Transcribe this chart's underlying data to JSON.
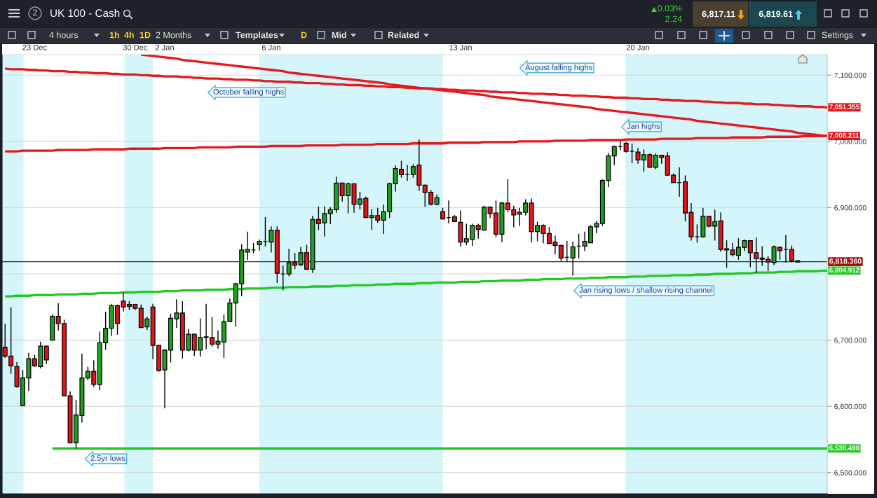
{
  "chart_data": {
    "type": "candlestick",
    "title": "UK 100 - Cash",
    "categories": [
      null,
      null,
      null,
      null,
      null,
      "23 Dec",
      null,
      null,
      null,
      null,
      null,
      null,
      null,
      null,
      null,
      null,
      null,
      null,
      null,
      null,
      null,
      null,
      "30 Dec",
      null,
      null,
      null,
      null,
      "2 Jan",
      null,
      null,
      null,
      null,
      null,
      null,
      null,
      null,
      null,
      null,
      null,
      null,
      null,
      null,
      null,
      null,
      null,
      "6 Jan",
      null,
      null,
      null,
      null,
      null,
      null,
      null,
      null,
      null,
      null,
      null,
      null,
      null,
      null,
      null,
      null,
      null,
      null,
      null,
      null,
      null,
      null,
      null,
      null,
      null,
      null,
      null,
      null,
      null,
      null,
      null,
      "13 Jan",
      null,
      null,
      null,
      null,
      null,
      null,
      null,
      null,
      null,
      null,
      null,
      null,
      null,
      null,
      null,
      null,
      null,
      null,
      null,
      null,
      null,
      null,
      null,
      null,
      null,
      null,
      null,
      null,
      null,
      "20 Jan",
      null,
      null,
      null,
      null,
      null,
      null,
      null,
      null,
      null,
      null,
      null,
      null,
      null,
      null,
      null,
      null,
      null,
      null,
      null,
      null,
      null,
      null,
      null,
      null,
      null,
      null,
      null,
      null,
      null,
      null,
      null,
      null
    ],
    "ohlc": [
      [
        6689,
        6724,
        6674,
        6676
      ],
      [
        6676,
        6749,
        6650,
        6661
      ],
      [
        6660,
        6666,
        6629,
        6630
      ],
      [
        6601,
        6654,
        6601,
        6643
      ],
      [
        6643,
        6680,
        6624,
        6672
      ],
      [
        6672,
        6677,
        6660,
        6661
      ],
      [
        6660,
        6697,
        6658,
        6691
      ],
      [
        6691,
        6691,
        6665,
        6670
      ],
      [
        6700,
        6738,
        6700,
        6736
      ],
      [
        6736,
        6755,
        6715,
        6725
      ],
      [
        6725,
        6730,
        6616,
        6616
      ],
      [
        6616,
        6622,
        6545,
        6545
      ],
      [
        6545,
        6609,
        6537,
        6587
      ],
      [
        6586,
        6679,
        6576,
        6643
      ],
      [
        6643,
        6659,
        6640,
        6653
      ],
      [
        6653,
        6669,
        6630,
        6633
      ],
      [
        6633,
        6712,
        6625,
        6696
      ],
      [
        6696,
        6742,
        6686,
        6718
      ],
      [
        6718,
        6754,
        6707,
        6752
      ],
      [
        6752,
        6753,
        6709,
        6725
      ],
      [
        6759,
        6771,
        6744,
        6750
      ],
      [
        6751,
        6758,
        6746,
        6754
      ],
      [
        6754,
        6754,
        6746,
        6748
      ],
      [
        6748,
        6753,
        6719,
        6719
      ],
      [
        6720,
        6735,
        6716,
        6732
      ],
      [
        6750,
        6754,
        6672,
        6692
      ],
      [
        6692,
        6692,
        6653,
        6654
      ],
      [
        6655,
        6686,
        6598,
        6685
      ],
      [
        6685,
        6739,
        6667,
        6733
      ],
      [
        6732,
        6761,
        6719,
        6741
      ],
      [
        6741,
        6758,
        6673,
        6685
      ],
      [
        6685,
        6716,
        6684,
        6709
      ],
      [
        6709,
        6709,
        6677,
        6685
      ],
      [
        6685,
        6732,
        6676,
        6704
      ],
      [
        6704,
        6754,
        6687,
        6705
      ],
      [
        6704,
        6734,
        6691,
        6694
      ],
      [
        6694,
        6714,
        6688,
        6698
      ],
      [
        6697,
        6738,
        6674,
        6728
      ],
      [
        6728,
        6762,
        6728,
        6756
      ],
      [
        6756,
        6786,
        6721,
        6785
      ],
      [
        6785,
        6844,
        6767,
        6836
      ],
      [
        6833,
        6863,
        6822,
        6837
      ],
      [
        6836,
        6846,
        6832,
        6836
      ],
      [
        6844,
        6851,
        6836,
        6849
      ],
      [
        6849,
        6885,
        6842,
        6849
      ],
      [
        6848,
        6871,
        6833,
        6866
      ],
      [
        6866,
        6871,
        6787,
        6801
      ],
      [
        6800,
        6812,
        6776,
        6800
      ],
      [
        6800,
        6837,
        6797,
        6817
      ],
      [
        6817,
        6831,
        6808,
        6813
      ],
      [
        6814,
        6840,
        6812,
        6832
      ],
      [
        6832,
        6843,
        6807,
        6807
      ],
      [
        6807,
        6887,
        6802,
        6882
      ],
      [
        6882,
        6901,
        6867,
        6876
      ],
      [
        6877,
        6901,
        6857,
        6891
      ],
      [
        6891,
        6900,
        6876,
        6897
      ],
      [
        6897,
        6946,
        6893,
        6937
      ],
      [
        6937,
        6937,
        6910,
        6918
      ],
      [
        6918,
        6937,
        6892,
        6936
      ],
      [
        6936,
        6936,
        6893,
        6905
      ],
      [
        6905,
        6923,
        6898,
        6913
      ],
      [
        6914,
        6916,
        6885,
        6885
      ],
      [
        6885,
        6897,
        6867,
        6888
      ],
      [
        6888,
        6899,
        6878,
        6881
      ],
      [
        6881,
        6904,
        6861,
        6894
      ],
      [
        6894,
        6937,
        6885,
        6936
      ],
      [
        6936,
        6963,
        6925,
        6959
      ],
      [
        6958,
        6970,
        6946,
        6950
      ],
      [
        6950,
        6964,
        6941,
        6950
      ],
      [
        6950,
        6965,
        6946,
        6962
      ],
      [
        6964,
        7002,
        6926,
        6934
      ],
      [
        6934,
        6934,
        6902,
        6923
      ],
      [
        6923,
        6926,
        6904,
        6905
      ],
      [
        6905,
        6919,
        6904,
        6915
      ],
      [
        6894,
        6899,
        6883,
        6883
      ],
      [
        6885,
        6910,
        6877,
        6885
      ],
      [
        6886,
        6888,
        6879,
        6879
      ],
      [
        6878,
        6895,
        6842,
        6848
      ],
      [
        6848,
        6875,
        6844,
        6853
      ],
      [
        6852,
        6875,
        6843,
        6873
      ],
      [
        6873,
        6875,
        6854,
        6867
      ],
      [
        6866,
        6902,
        6866,
        6901
      ],
      [
        6901,
        6901,
        6885,
        6891
      ],
      [
        6892,
        6910,
        6856,
        6860
      ],
      [
        6860,
        6908,
        6849,
        6907
      ],
      [
        6907,
        6942,
        6894,
        6897
      ],
      [
        6897,
        6902,
        6871,
        6889
      ],
      [
        6890,
        6899,
        6873,
        6893
      ],
      [
        6893,
        6912,
        6889,
        6907
      ],
      [
        6907,
        6913,
        6848,
        6864
      ],
      [
        6864,
        6878,
        6850,
        6873
      ],
      [
        6873,
        6874,
        6847,
        6861
      ],
      [
        6861,
        6870,
        6846,
        6846
      ],
      [
        6848,
        6857,
        6830,
        6843
      ],
      [
        6843,
        6843,
        6820,
        6824
      ],
      [
        6825,
        6849,
        6819,
        6825
      ],
      [
        6824,
        6848,
        6798,
        6841
      ],
      [
        6842,
        6860,
        6824,
        6842
      ],
      [
        6842,
        6863,
        6835,
        6849
      ],
      [
        6847,
        6873,
        6847,
        6871
      ],
      [
        6871,
        6879,
        6862,
        6876
      ],
      [
        6876,
        6942,
        6873,
        6941
      ],
      [
        6941,
        6982,
        6932,
        6978
      ],
      [
        6978,
        6993,
        6965,
        6992
      ],
      [
        6992,
        6999,
        6988,
        6992
      ],
      [
        6997,
        6999,
        6984,
        6985
      ],
      [
        6985,
        6996,
        6968,
        6985
      ],
      [
        6984,
        6989,
        6967,
        6972
      ],
      [
        6972,
        6987,
        6955,
        6980
      ],
      [
        6980,
        6981,
        6961,
        6961
      ],
      [
        6961,
        6981,
        6959,
        6979
      ],
      [
        6979,
        6979,
        6967,
        6976
      ],
      [
        6978,
        6983,
        6949,
        6949
      ],
      [
        6949,
        6951,
        6938,
        6938
      ],
      [
        6938,
        6960,
        6917,
        6938
      ],
      [
        6939,
        6948,
        6880,
        6892
      ],
      [
        6893,
        6906,
        6851,
        6856
      ],
      [
        6856,
        6874,
        6848,
        6856
      ],
      [
        6856,
        6899,
        6856,
        6887
      ],
      [
        6887,
        6887,
        6871,
        6872
      ],
      [
        6872,
        6896,
        6851,
        6879
      ],
      [
        6880,
        6892,
        6834,
        6837
      ],
      [
        6838,
        6850,
        6810,
        6836
      ],
      [
        6836,
        6846,
        6827,
        6829
      ],
      [
        6828,
        6853,
        6822,
        6840
      ],
      [
        6840,
        6851,
        6835,
        6850
      ],
      [
        6850,
        6850,
        6811,
        6832
      ],
      [
        6832,
        6854,
        6802,
        6823
      ],
      [
        6824,
        6841,
        6813,
        6822
      ],
      [
        6822,
        6826,
        6805,
        6818
      ],
      [
        6817,
        6842,
        6814,
        6841
      ],
      [
        6840,
        6841,
        6822,
        6835
      ],
      [
        6837,
        6858,
        6818,
        6837
      ],
      [
        6837,
        6842,
        6818,
        6820
      ],
      [
        6820,
        6820,
        6818,
        6818
      ],
      null,
      null,
      null,
      null,
      null
    ],
    "colors": [
      "#e3151b",
      "#e3151b",
      "#e3151b",
      "#20a020",
      "#20a020",
      "#e3151b",
      "#20a020",
      "#e3151b",
      "#20a020",
      "#e3151b",
      "#e3151b",
      "#e3151b",
      "#20a020",
      "#20a020",
      "#20a020",
      "#e3151b",
      "#20a020",
      "#20a020",
      "#20a020",
      "#e3151b",
      "#e3151b",
      "#20a020",
      "#e3151b",
      "#e3151b",
      "#20a020",
      "#e3151b",
      "#e3151b",
      "#20a020",
      "#20a020",
      "#20a020",
      "#e3151b",
      "#20a020",
      "#e3151b",
      "#20a020",
      "#20a020",
      "#e3151b",
      "#20a020",
      "#20a020",
      "#20a020",
      "#20a020",
      "#20a020",
      "#20a020",
      "#000000",
      "#20a020",
      "#000000",
      "#20a020",
      "#e3151b",
      "#000000",
      "#20a020",
      "#e3151b",
      "#20a020",
      "#e3151b",
      "#20a020",
      "#e3151b",
      "#20a020",
      "#20a020",
      "#20a020",
      "#e3151b",
      "#20a020",
      "#e3151b",
      "#20a020",
      "#e3151b",
      "#20a020",
      "#e3151b",
      "#20a020",
      "#20a020",
      "#20a020",
      "#e3151b",
      "#000000",
      "#20a020",
      "#e3151b",
      "#e3151b",
      "#e3151b",
      "#20a020",
      "#e3151b",
      "#000000",
      "#e3151b",
      "#e3151b",
      "#20a020",
      "#20a020",
      "#e3151b",
      "#20a020",
      "#e3151b",
      "#e3151b",
      "#20a020",
      "#e3151b",
      "#e3151b",
      "#20a020",
      "#20a020",
      "#e3151b",
      "#20a020",
      "#e3151b",
      "#e3151b",
      "#e3151b",
      "#e3151b",
      "#000000",
      "#20a020",
      "#000000",
      "#20a020",
      "#20a020",
      "#20a020",
      "#20a020",
      "#20a020",
      "#20a020",
      "#000000",
      "#e3151b",
      "#000000",
      "#e3151b",
      "#20a020",
      "#e3151b",
      "#20a020",
      "#e3151b",
      "#e3151b",
      "#e3151b",
      "#000000",
      "#e3151b",
      "#e3151b",
      "#000000",
      "#20a020",
      "#e3151b",
      "#20a020",
      "#e3151b",
      "#e3151b",
      "#e3151b",
      "#20a020",
      "#20a020",
      "#e3151b",
      "#e3151b",
      "#e3151b",
      "#e3151b",
      "#20a020",
      "#e3151b",
      "#000000",
      "#e3151b",
      "#e3151b",
      null,
      null,
      null,
      null,
      null
    ],
    "series": [
      {
        "type": "line",
        "color": "#e5191e",
        "values": [
          7110,
          7109,
          7109,
          7109,
          7108,
          7108,
          7107,
          7107,
          7106,
          7106,
          7106,
          7105,
          7105,
          7104,
          7104,
          7103,
          7103,
          7103,
          7102,
          7102,
          7101,
          7101,
          7101,
          7100,
          7100,
          7099,
          7099,
          7098,
          7098,
          7098,
          7097,
          7097,
          7096,
          7096,
          7095,
          7095,
          7095,
          7094,
          7094,
          7093,
          7093,
          7093,
          7092,
          7092,
          7091,
          7091,
          7090,
          7090,
          7090,
          7089,
          7089,
          7088,
          7088,
          7088,
          7087,
          7087,
          7086,
          7086,
          7085,
          7085,
          7085,
          7084,
          7084,
          7083,
          7083,
          7082,
          7082,
          7082,
          7081,
          7081,
          7080,
          7080,
          7080,
          7079,
          7079,
          7078,
          7078,
          7077,
          7077,
          7077,
          7076,
          7076,
          7075,
          7075,
          7074,
          7074,
          7074,
          7073,
          7073,
          7072,
          7072,
          7072,
          7071,
          7071,
          7070,
          7070,
          7069,
          7069,
          7069,
          7068,
          7068,
          7067,
          7067,
          7066,
          7066,
          7066,
          7065,
          7065,
          7064,
          7064,
          7064,
          7063,
          7063,
          7062,
          7062,
          7061,
          7061,
          7061,
          7060,
          7060,
          7059,
          7059,
          7058,
          7058,
          7058,
          7057,
          7057,
          7056,
          7056,
          7056,
          7055,
          7055,
          7054,
          7054,
          7053,
          7053,
          7053,
          7052,
          7052,
          7051.355
        ],
        "value_labels": [
          null,
          null,
          null,
          null,
          null,
          null,
          null,
          null,
          null,
          null,
          null,
          null,
          null,
          null,
          null,
          null,
          null,
          null,
          null,
          null,
          null,
          null,
          null,
          null,
          null,
          null,
          null,
          null,
          null,
          null,
          null,
          null,
          null,
          null,
          null,
          null,
          null,
          null,
          null,
          null,
          null,
          null,
          null,
          null,
          null,
          null,
          null,
          null,
          null,
          null,
          null,
          null,
          null,
          null,
          null,
          null,
          null,
          null,
          null,
          null,
          null,
          null,
          null,
          null,
          null,
          null,
          null,
          null,
          null,
          null,
          null,
          null,
          null,
          null,
          null,
          null,
          null,
          null,
          null,
          null,
          null,
          null,
          null,
          null,
          null,
          null,
          null,
          null,
          null,
          null,
          null,
          null,
          null,
          null,
          null,
          null,
          null,
          null,
          null,
          null,
          null,
          null,
          null,
          null,
          null,
          null,
          null,
          null,
          null,
          null,
          null,
          null,
          null,
          null,
          null,
          null,
          null,
          null,
          null,
          null,
          null,
          null,
          null,
          null,
          null,
          null,
          null,
          null,
          null,
          null,
          null,
          null,
          null,
          null,
          null,
          null,
          null,
          null,
          null,
          "7,051.355"
        ]
      },
      {
        "type": "line",
        "color": "#e5191e",
        "values": [
          null,
          null,
          null,
          null,
          null,
          null,
          null,
          null,
          null,
          null,
          null,
          null,
          null,
          null,
          null,
          null,
          null,
          null,
          null,
          null,
          null,
          null,
          null,
          7131,
          7130,
          7129,
          7128,
          7127,
          7126,
          7125,
          7123,
          7122,
          7121,
          7120,
          7119,
          7118,
          7117,
          7116,
          7115,
          7114,
          7113,
          7112,
          7111,
          7110,
          7109,
          7108,
          7107,
          7106,
          7104,
          7103,
          7102,
          7101,
          7100,
          7099,
          7098,
          7097,
          7096,
          7095,
          7094,
          7093,
          7092,
          7091,
          7090,
          7089,
          7088,
          7086,
          7085,
          7084,
          7083,
          7082,
          7081,
          7080,
          7079,
          7078,
          7077,
          7076,
          7075,
          7074,
          7073,
          7072,
          7071,
          7070,
          7068,
          7067,
          7066,
          7065,
          7064,
          7063,
          7062,
          7061,
          7060,
          7059,
          7058,
          7057,
          7056,
          7055,
          7054,
          7053,
          7052,
          7051,
          7049,
          7048,
          7047,
          7046,
          7045,
          7044,
          7043,
          7042,
          7041,
          7040,
          7039,
          7038,
          7037,
          7036,
          7035,
          7034,
          7033,
          7031,
          7030,
          7029,
          7028,
          7027,
          7026,
          7025,
          7024,
          7023,
          7022,
          7021,
          7020,
          7019,
          7018,
          7017,
          7016,
          7015,
          7013,
          7012,
          7011,
          7010,
          7009,
          7008.211
        ]
      },
      {
        "type": "line",
        "color": "#e5191e",
        "values": [
          6985,
          6985,
          6985,
          6986,
          6986,
          6986,
          6986,
          6986,
          6986,
          6987,
          6987,
          6987,
          6987,
          6987,
          6987,
          6988,
          6988,
          6988,
          6988,
          6988,
          6988,
          6989,
          6989,
          6989,
          6989,
          6989,
          6989,
          6990,
          6990,
          6990,
          6990,
          6990,
          6990,
          6991,
          6991,
          6991,
          6991,
          6991,
          6991,
          6992,
          6992,
          6992,
          6992,
          6992,
          6992,
          6993,
          6993,
          6993,
          6993,
          6993,
          6993,
          6994,
          6994,
          6994,
          6994,
          6994,
          6994,
          6995,
          6995,
          6995,
          6995,
          6995,
          6995,
          6996,
          6996,
          6996,
          6996,
          6996,
          6996,
          6997,
          6997,
          6997,
          6997,
          6997,
          6997,
          6998,
          6998,
          6998,
          6998,
          6998,
          6998,
          6999,
          6999,
          6999,
          6999,
          6999,
          6999,
          7000,
          7000,
          7000,
          7000,
          7000,
          7000,
          7001,
          7001,
          7001,
          7001,
          7001,
          7001,
          7002,
          7002,
          7002,
          7002,
          7002,
          7002,
          7003,
          7003,
          7003,
          7003,
          7003,
          7003,
          7004,
          7004,
          7004,
          7004,
          7004,
          7004,
          7005,
          7005,
          7005,
          7005,
          7005,
          7005,
          7006,
          7006,
          7006,
          7006,
          7006,
          7006,
          7007,
          7007,
          7007,
          7007,
          7007,
          7007,
          7008,
          7008,
          7008,
          7008,
          7008.211
        ],
        "value_labels": [
          null,
          null,
          null,
          null,
          null,
          null,
          null,
          null,
          null,
          null,
          null,
          null,
          null,
          null,
          null,
          null,
          null,
          null,
          null,
          null,
          null,
          null,
          null,
          null,
          null,
          null,
          null,
          null,
          null,
          null,
          null,
          null,
          null,
          null,
          null,
          null,
          null,
          null,
          null,
          null,
          null,
          null,
          null,
          null,
          null,
          null,
          null,
          null,
          null,
          null,
          null,
          null,
          null,
          null,
          null,
          null,
          null,
          null,
          null,
          null,
          null,
          null,
          null,
          null,
          null,
          null,
          null,
          null,
          null,
          null,
          null,
          null,
          null,
          null,
          null,
          null,
          null,
          null,
          null,
          null,
          null,
          null,
          null,
          null,
          null,
          null,
          null,
          null,
          null,
          null,
          null,
          null,
          null,
          null,
          null,
          null,
          null,
          null,
          null,
          null,
          null,
          null,
          null,
          null,
          null,
          null,
          null,
          null,
          null,
          null,
          null,
          null,
          null,
          null,
          null,
          null,
          null,
          null,
          null,
          null,
          null,
          null,
          null,
          null,
          null,
          null,
          null,
          null,
          null,
          null,
          null,
          null,
          null,
          null,
          null,
          null,
          null,
          null,
          null,
          "7,008.211"
        ]
      },
      {
        "type": "line",
        "color": "#25c925",
        "values": [
          6766,
          6766,
          6767,
          6767,
          6767,
          6768,
          6768,
          6768,
          6768,
          6769,
          6769,
          6769,
          6769,
          6770,
          6770,
          6770,
          6771,
          6771,
          6771,
          6771,
          6772,
          6772,
          6772,
          6773,
          6773,
          6773,
          6773,
          6774,
          6774,
          6774,
          6775,
          6775,
          6775,
          6775,
          6776,
          6776,
          6776,
          6776,
          6777,
          6777,
          6777,
          6778,
          6778,
          6778,
          6778,
          6779,
          6779,
          6779,
          6780,
          6780,
          6780,
          6780,
          6781,
          6781,
          6781,
          6781,
          6782,
          6782,
          6782,
          6783,
          6783,
          6783,
          6783,
          6784,
          6784,
          6784,
          6785,
          6785,
          6785,
          6785,
          6786,
          6786,
          6786,
          6787,
          6787,
          6787,
          6787,
          6788,
          6788,
          6788,
          6788,
          6789,
          6789,
          6789,
          6790,
          6790,
          6790,
          6790,
          6791,
          6791,
          6791,
          6792,
          6792,
          6792,
          6792,
          6793,
          6793,
          6793,
          6793,
          6794,
          6794,
          6794,
          6795,
          6795,
          6795,
          6795,
          6796,
          6796,
          6796,
          6797,
          6797,
          6797,
          6797,
          6798,
          6798,
          6798,
          6798,
          6799,
          6799,
          6799,
          6800,
          6800,
          6800,
          6800,
          6801,
          6801,
          6801,
          6802,
          6802,
          6802,
          6802,
          6803,
          6803,
          6803,
          6804,
          6804,
          6804,
          6804,
          6804.6,
          6804.912
        ],
        "value_labels": [
          null,
          null,
          null,
          null,
          null,
          null,
          null,
          null,
          null,
          null,
          null,
          null,
          null,
          null,
          null,
          null,
          null,
          null,
          null,
          null,
          null,
          null,
          null,
          null,
          null,
          null,
          null,
          null,
          null,
          null,
          null,
          null,
          null,
          null,
          null,
          null,
          null,
          null,
          null,
          null,
          null,
          null,
          null,
          null,
          null,
          null,
          null,
          null,
          null,
          null,
          null,
          null,
          null,
          null,
          null,
          null,
          null,
          null,
          null,
          null,
          null,
          null,
          null,
          null,
          null,
          null,
          null,
          null,
          null,
          null,
          null,
          null,
          null,
          null,
          null,
          null,
          null,
          null,
          null,
          null,
          null,
          null,
          null,
          null,
          null,
          null,
          null,
          null,
          null,
          null,
          null,
          null,
          null,
          null,
          null,
          null,
          null,
          null,
          null,
          null,
          null,
          null,
          null,
          null,
          null,
          null,
          null,
          null,
          null,
          null,
          null,
          null,
          null,
          null,
          null,
          null,
          null,
          null,
          null,
          null,
          null,
          null,
          null,
          null,
          null,
          null,
          null,
          null,
          null,
          null,
          null,
          null,
          null,
          null,
          null,
          null,
          null,
          null,
          null,
          "6,804.912"
        ]
      },
      {
        "type": "line",
        "color": "#25c925",
        "values": [
          null,
          null,
          null,
          null,
          null,
          null,
          null,
          null,
          6536.49,
          6536.49,
          6536.49,
          6536.49,
          6536.49,
          6536.49,
          6536.49,
          6536.49,
          6536.49,
          6536.49,
          6536.49,
          6536.49,
          6536.49,
          6536.49,
          6536.49,
          6536.49,
          6536.49,
          6536.49,
          6536.49,
          6536.49,
          6536.49,
          6536.49,
          6536.49,
          6536.49,
          6536.49,
          6536.49,
          6536.49,
          6536.49,
          6536.49,
          6536.49,
          6536.49,
          6536.49,
          6536.49,
          6536.49,
          6536.49,
          6536.49,
          6536.49,
          6536.49,
          6536.49,
          6536.49,
          6536.49,
          6536.49,
          6536.49,
          6536.49,
          6536.49,
          6536.49,
          6536.49,
          6536.49,
          6536.49,
          6536.49,
          6536.49,
          6536.49,
          6536.49,
          6536.49,
          6536.49,
          6536.49,
          6536.49,
          6536.49,
          6536.49,
          6536.49,
          6536.49,
          6536.49,
          6536.49,
          6536.49,
          6536.49,
          6536.49,
          6536.49,
          6536.49,
          6536.49,
          6536.49,
          6536.49,
          6536.49,
          6536.49,
          6536.49,
          6536.49,
          6536.49,
          6536.49,
          6536.49,
          6536.49,
          6536.49,
          6536.49,
          6536.49,
          6536.49,
          6536.49,
          6536.49,
          6536.49,
          6536.49,
          6536.49,
          6536.49,
          6536.49,
          6536.49,
          6536.49,
          6536.49,
          6536.49,
          6536.49,
          6536.49,
          6536.49,
          6536.49,
          6536.49,
          6536.49,
          6536.49,
          6536.49,
          6536.49,
          6536.49,
          6536.49,
          6536.49,
          6536.49,
          6536.49,
          6536.49,
          6536.49,
          6536.49,
          6536.49,
          6536.49,
          6536.49,
          6536.49,
          6536.49,
          6536.49,
          6536.49,
          6536.49,
          6536.49,
          6536.49,
          6536.49,
          6536.49,
          6536.49,
          6536.49,
          6536.49,
          6536.49,
          6536.49,
          6536.49,
          6536.49,
          6536.49,
          6536.49
        ],
        "value_labels": [
          null,
          null,
          null,
          null,
          null,
          null,
          null,
          null,
          null,
          null,
          null,
          null,
          null,
          null,
          null,
          null,
          null,
          null,
          null,
          null,
          null,
          null,
          null,
          null,
          null,
          null,
          null,
          null,
          null,
          null,
          null,
          null,
          null,
          null,
          null,
          null,
          null,
          null,
          null,
          null,
          null,
          null,
          null,
          null,
          null,
          null,
          null,
          null,
          null,
          null,
          null,
          null,
          null,
          null,
          null,
          null,
          null,
          null,
          null,
          null,
          null,
          null,
          null,
          null,
          null,
          null,
          null,
          null,
          null,
          null,
          null,
          null,
          null,
          null,
          null,
          null,
          null,
          null,
          null,
          null,
          null,
          null,
          null,
          null,
          null,
          null,
          null,
          null,
          null,
          null,
          null,
          null,
          null,
          null,
          null,
          null,
          null,
          null,
          null,
          null,
          null,
          null,
          null,
          null,
          null,
          null,
          null,
          null,
          null,
          null,
          null,
          null,
          null,
          null,
          null,
          null,
          null,
          null,
          null,
          null,
          null,
          null,
          null,
          null,
          null,
          null,
          null,
          null,
          null,
          null,
          null,
          null,
          null,
          null,
          null,
          null,
          null,
          null,
          null,
          "6,536.490"
        ]
      }
    ],
    "ref_lines": [
      {
        "axis": "y",
        "value": 6818.36,
        "label": "6,818.360",
        "color": "#2b2b2b"
      }
    ],
    "ylim": [
      6468,
      7131
    ],
    "yticks": [
      {
        "value": 6500,
        "label": "6,500.000"
      },
      {
        "value": 6600,
        "label": "6,600.000"
      },
      {
        "value": 6700,
        "label": "6,700.000"
      },
      {
        "value": 6800,
        "label": null
      },
      {
        "value": 6900,
        "label": "6,900.000"
      },
      {
        "value": 7000,
        "label": "7,000.000"
      },
      {
        "value": 7100,
        "label": "7,100.000"
      }
    ],
    "grid": "y",
    "annotations": [
      "October falling highs",
      "August falling highs",
      "Jan highs",
      "Jan rising lows / shallow rising channel",
      "2.5yr lows",
      "2",
      "0.03%",
      "2.24",
      "6,817.11",
      "6,819.61",
      "4 hours",
      "1h",
      "4h",
      "1D",
      "2 Months",
      "Templates",
      "D",
      "Mid",
      "Related",
      "Settings"
    ]
  }
}
